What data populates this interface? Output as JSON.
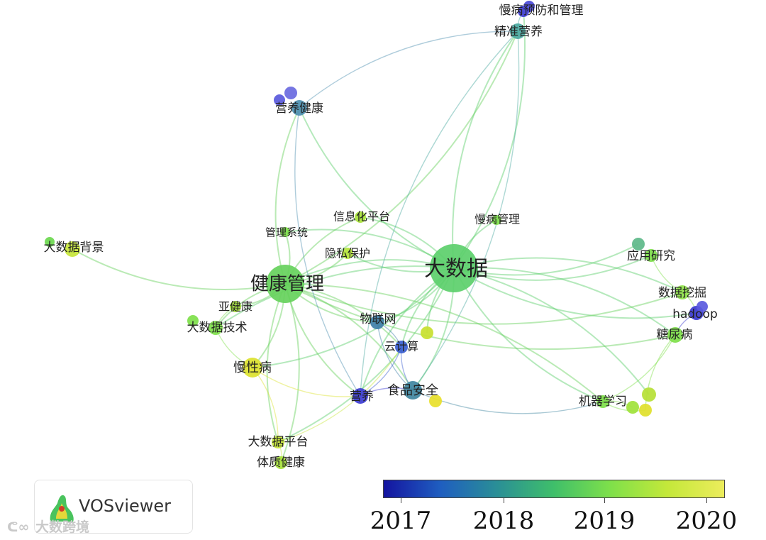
{
  "nodes": [
    {
      "id": "big-data",
      "label": "大数据",
      "color": "#5ccf6b"
    },
    {
      "id": "health-mgmt",
      "label": "健康管理",
      "color": "#66d15c"
    },
    {
      "id": "chronic-mgmt-prev",
      "label": "慢病预防和管理",
      "color": "#3f3fd6"
    },
    {
      "id": "precision-nutrition",
      "label": "精准营养",
      "color": "#4aa8a0"
    },
    {
      "id": "nutrition-health",
      "label": "营养健康",
      "color": "#4c8fb0"
    },
    {
      "id": "info-platform",
      "label": "信息化平台",
      "color": "#a8e23a"
    },
    {
      "id": "mgmt-system",
      "label": "管理系统",
      "color": "#7ee04a"
    },
    {
      "id": "chronic-mgmt",
      "label": "慢病管理",
      "color": "#7ee04a"
    },
    {
      "id": "bigdata-background",
      "label": "大数据背景",
      "color": "#c7e63a"
    },
    {
      "id": "privacy",
      "label": "隐私保护",
      "color": "#b4e53a"
    },
    {
      "id": "app-research",
      "label": "应用研究",
      "color": "#7ee04a"
    },
    {
      "id": "data-mining",
      "label": "数据挖掘",
      "color": "#8fe24a"
    },
    {
      "id": "hadoop",
      "label": "hadoop",
      "color": "#3a3ad0"
    },
    {
      "id": "diabetes",
      "label": "糖尿病",
      "color": "#7ee04a"
    },
    {
      "id": "subhealth",
      "label": "亚健康",
      "color": "#a6e23a"
    },
    {
      "id": "bigdata-tech",
      "label": "大数据技术",
      "color": "#7ee04a"
    },
    {
      "id": "iot",
      "label": "物联网",
      "color": "#3f7fa8"
    },
    {
      "id": "cloud",
      "label": "云计算",
      "color": "#3a5ed0"
    },
    {
      "id": "chronic-disease",
      "label": "慢性病",
      "color": "#dce22e"
    },
    {
      "id": "nutrition",
      "label": "营养",
      "color": "#3c3cd2"
    },
    {
      "id": "food-safety",
      "label": "食品安全",
      "color": "#3f86a0"
    },
    {
      "id": "machine-learning",
      "label": "机器学习",
      "color": "#7ee04a"
    },
    {
      "id": "bigdata-platform",
      "label": "大数据平台",
      "color": "#c7e63a"
    },
    {
      "id": "constitution",
      "label": "体质健康",
      "color": "#a6e23a"
    },
    {
      "id": "extra-1",
      "label": "",
      "color": "#4a4ad8"
    },
    {
      "id": "extra-2",
      "label": "",
      "color": "#6a6ae0"
    },
    {
      "id": "extra-3",
      "label": "",
      "color": "#5db889"
    },
    {
      "id": "extra-4",
      "label": "",
      "color": "#5959dc"
    },
    {
      "id": "extra-5",
      "label": "",
      "color": "#c8e02e"
    },
    {
      "id": "extra-6",
      "label": "",
      "color": "#e8e02a"
    },
    {
      "id": "extra-7",
      "label": "",
      "color": "#b6e035"
    },
    {
      "id": "extra-8",
      "label": "",
      "color": "#9fe23a"
    },
    {
      "id": "extra-9",
      "label": "",
      "color": "#e0e02a"
    },
    {
      "id": "extra-10",
      "label": "",
      "color": "#7ee04a"
    },
    {
      "id": "extra-11",
      "label": "",
      "color": "#6bd84e"
    },
    {
      "id": "extra-12",
      "label": "",
      "color": "#5a5ade"
    }
  ],
  "edges": [
    [
      "big-data",
      "health-mgmt"
    ],
    [
      "big-data",
      "precision-nutrition"
    ],
    [
      "big-data",
      "chronic-mgmt-prev"
    ],
    [
      "big-data",
      "nutrition-health"
    ],
    [
      "big-data",
      "info-platform"
    ],
    [
      "big-data",
      "chronic-mgmt"
    ],
    [
      "big-data",
      "app-research"
    ],
    [
      "big-data",
      "data-mining"
    ],
    [
      "big-data",
      "hadoop"
    ],
    [
      "big-data",
      "diabetes"
    ],
    [
      "big-data",
      "machine-learning"
    ],
    [
      "big-data",
      "iot"
    ],
    [
      "big-data",
      "cloud"
    ],
    [
      "big-data",
      "food-safety"
    ],
    [
      "big-data",
      "nutrition"
    ],
    [
      "big-data",
      "chronic-disease"
    ],
    [
      "big-data",
      "bigdata-tech"
    ],
    [
      "big-data",
      "privacy"
    ],
    [
      "big-data",
      "extra-5"
    ],
    [
      "big-data",
      "bigdata-platform"
    ],
    [
      "big-data",
      "extra-3"
    ],
    [
      "big-data",
      "extra-7"
    ],
    [
      "big-data",
      "mgmt-system"
    ],
    [
      "health-mgmt",
      "bigdata-background"
    ],
    [
      "health-mgmt",
      "precision-nutrition"
    ],
    [
      "health-mgmt",
      "nutrition-health"
    ],
    [
      "health-mgmt",
      "mgmt-system"
    ],
    [
      "health-mgmt",
      "info-platform"
    ],
    [
      "health-mgmt",
      "privacy"
    ],
    [
      "health-mgmt",
      "subhealth"
    ],
    [
      "health-mgmt",
      "bigdata-tech"
    ],
    [
      "health-mgmt",
      "chronic-disease"
    ],
    [
      "health-mgmt",
      "bigdata-platform"
    ],
    [
      "health-mgmt",
      "constitution"
    ],
    [
      "health-mgmt",
      "iot"
    ],
    [
      "health-mgmt",
      "cloud"
    ],
    [
      "health-mgmt",
      "nutrition"
    ],
    [
      "health-mgmt",
      "food-safety"
    ],
    [
      "health-mgmt",
      "data-mining"
    ],
    [
      "health-mgmt",
      "machine-learning"
    ],
    [
      "health-mgmt",
      "diabetes"
    ],
    [
      "nutrition-health",
      "precision-nutrition"
    ],
    [
      "nutrition-health",
      "nutrition"
    ],
    [
      "precision-nutrition",
      "chronic-mgmt-prev"
    ],
    [
      "precision-nutrition",
      "nutrition"
    ],
    [
      "precision-nutrition",
      "food-safety"
    ],
    [
      "app-research",
      "data-mining"
    ],
    [
      "data-mining",
      "hadoop"
    ],
    [
      "hadoop",
      "diabetes"
    ],
    [
      "diabetes",
      "machine-learning"
    ],
    [
      "diabetes",
      "extra-9"
    ],
    [
      "bigdata-tech",
      "subhealth"
    ],
    [
      "bigdata-tech",
      "chronic-disease"
    ],
    [
      "chronic-disease",
      "bigdata-platform"
    ],
    [
      "chronic-disease",
      "nutrition"
    ],
    [
      "iot",
      "cloud"
    ],
    [
      "iot",
      "food-safety"
    ],
    [
      "cloud",
      "nutrition"
    ],
    [
      "cloud",
      "food-safety"
    ],
    [
      "nutrition",
      "food-safety"
    ],
    [
      "food-safety",
      "machine-learning"
    ],
    [
      "bigdata-platform",
      "constitution"
    ],
    [
      "bigdata-platform",
      "cloud"
    ],
    [
      "machine-learning",
      "extra-8"
    ],
    [
      "machine-learning",
      "extra-9"
    ]
  ],
  "legend": {
    "ticks": [
      "2017",
      "2018",
      "2019",
      "2020"
    ],
    "gradient": [
      "#1414a0",
      "#1f5ec0",
      "#2a8f96",
      "#3fbf6a",
      "#7fe04a",
      "#c4e83a",
      "#ecec5c"
    ]
  },
  "branding": {
    "logo_text": "VOSviewer",
    "watermark": "大数跨境"
  }
}
